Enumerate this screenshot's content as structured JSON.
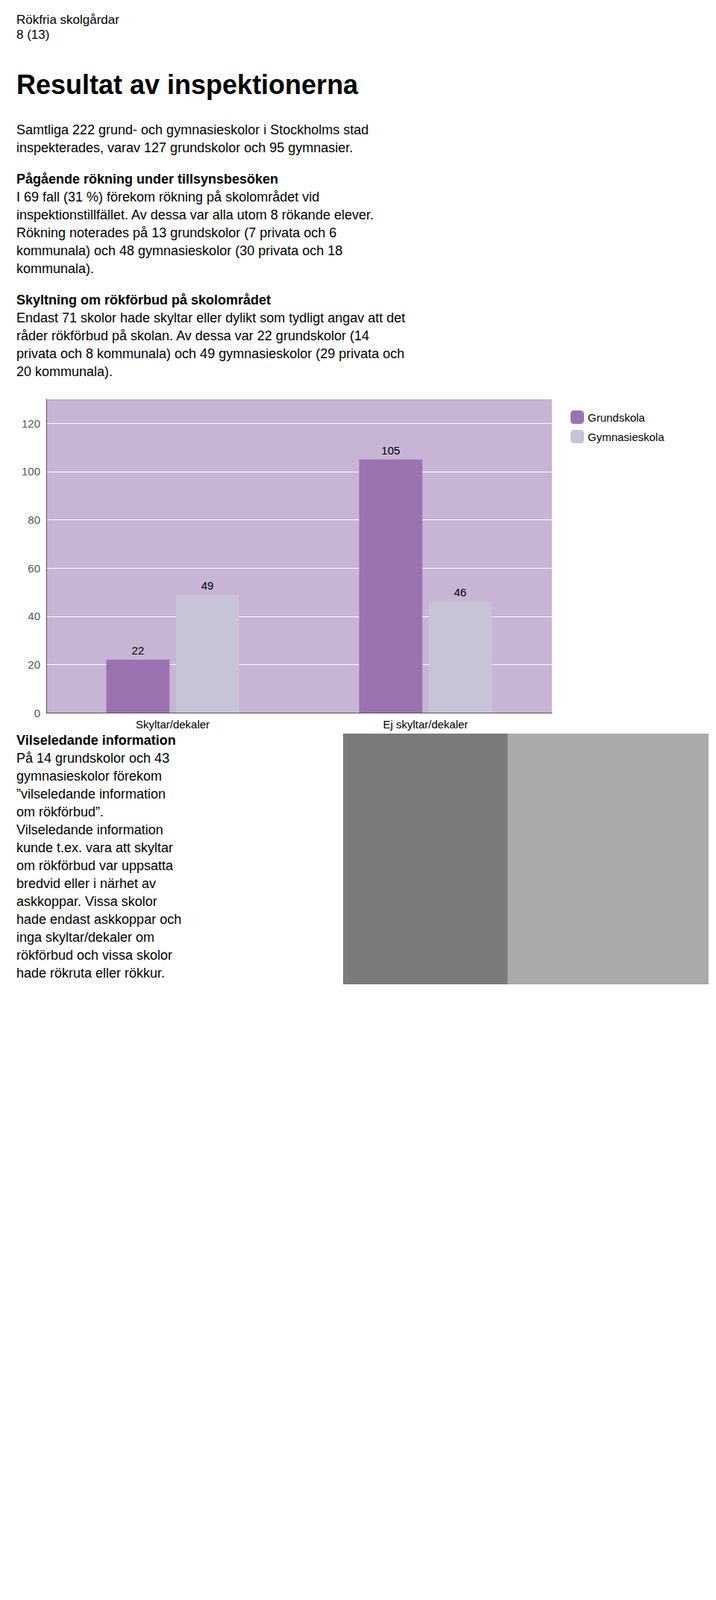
{
  "chart_data": {
    "type": "bar",
    "annotations": [
      [
        "Rökfria skolgårdar",
        "8 (13)"
      ],
      [
        "Resultat av inspektionerna"
      ],
      [
        "Samtliga 222 grund- och gymnasieskolor i Stockholms stad",
        "inspekterades, varav 127 grundskolor och 95 gymnasier."
      ],
      [
        "Pågående rökning under tillsynsbesöken"
      ],
      [
        "I 69 fall (31 %) förekom rökning på skolområdet vid",
        "inspektionstillfället. Av dessa var alla utom 8 rökande elever.",
        "Rökning noterades på 13 grundskolor (7 privata och 6",
        "kommunala) och 48 gymnasieskolor (30 privata och 18",
        "kommunala)."
      ],
      [
        "Skyltning om rökförbud på skolområdet"
      ],
      [
        "Endast 71 skolor hade skyltar eller dylikt som tydligt angav att det",
        "råder rökförbud på skolan. Av dessa var 22 grundskolor (14",
        "privata och 8 kommunala) och 49 gymnasieskolor (29 privata och",
        "20 kommunala)."
      ],
      [
        "Vilseledande information"
      ],
      [
        "På 14 grundskolor och 43",
        "gymnasieskolor förekom",
        "”vilseledande information",
        "om rökförbud”.",
        "Vilseledande information",
        "kunde t.ex. vara att skyltar",
        "om rökförbud var uppsatta",
        "bredvid eller i närhet av",
        "askkoppar. Vissa skolor",
        "hade endast askkoppar och",
        "inga skyltar/dekaler om",
        "rökförbud och vissa skolor",
        "hade rökruta eller rökkur."
      ]
    ],
    "categories": [
      "Skyltar/dekaler",
      "Ej skyltar/dekaler"
    ],
    "series": [
      {
        "name": "Grundskola",
        "color": "#9b72b0",
        "values": [
          22,
          105
        ]
      },
      {
        "name": "Gymnasieskola",
        "color": "#c8c4d8",
        "values": [
          49,
          46
        ]
      }
    ],
    "ylim": [
      0,
      130
    ],
    "yticks": [
      0,
      20,
      40,
      60,
      80,
      100,
      120
    ],
    "grid": true,
    "legend": "upper right",
    "data_labels": true
  }
}
